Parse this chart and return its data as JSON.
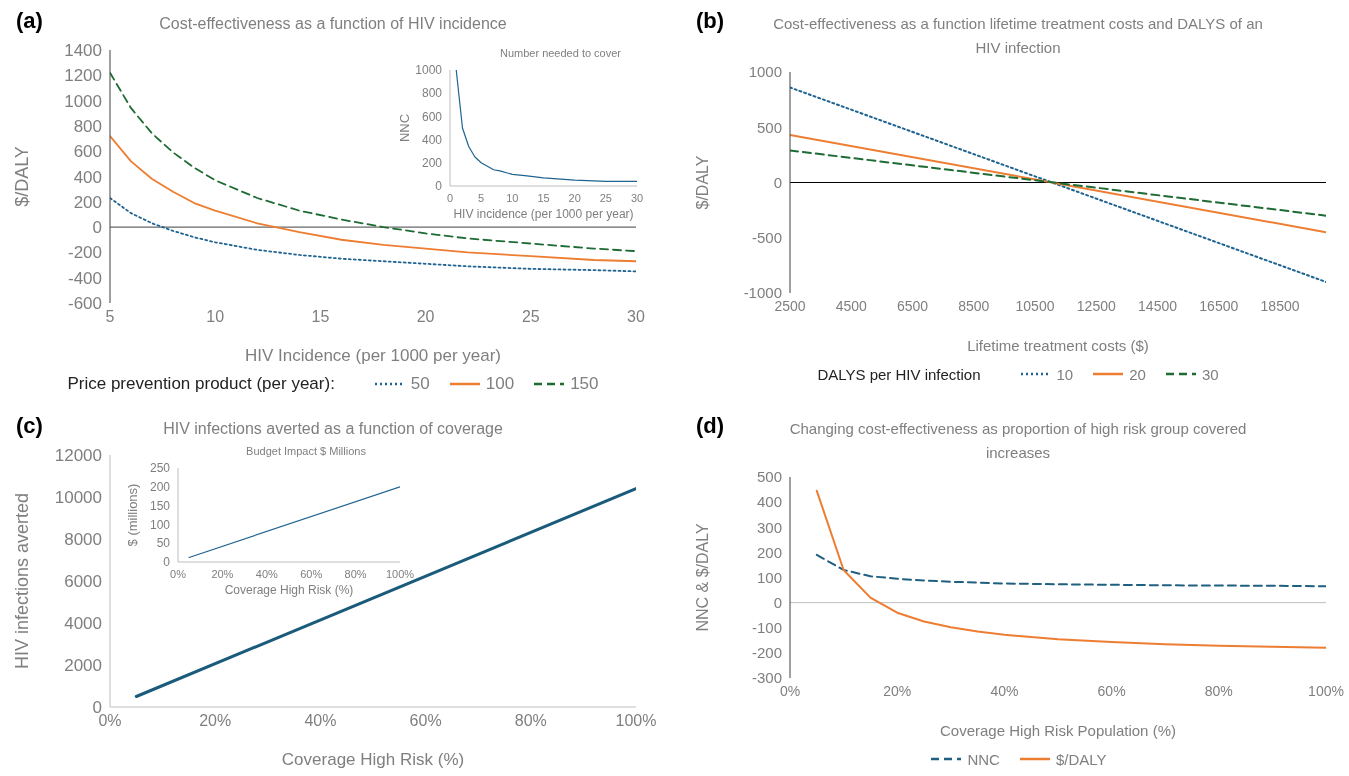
{
  "chart_data": [
    {
      "type": "line",
      "title": "Cost-effectiveness as a function of HIV incidence",
      "xlabel": "HIV Incidence (per 1000 per year)",
      "ylabel": "$/DALY",
      "legend_title": "Price prevention product (per year):",
      "annotations": [
        "(a)"
      ],
      "x": [
        5,
        6,
        7,
        8,
        9,
        10,
        12,
        14,
        16,
        18,
        20,
        22,
        25,
        28,
        30
      ],
      "xlim": [
        5,
        30
      ],
      "xticks": [
        5,
        10,
        15,
        20,
        25,
        30
      ],
      "ylim": [
        -600,
        1400
      ],
      "yticks": [
        -600,
        -400,
        -200,
        0,
        200,
        400,
        600,
        800,
        1000,
        1200,
        1400
      ],
      "legend": "bottom",
      "marker": "none",
      "ref_lines": [
        {
          "axis": "y",
          "value": 0,
          "color": "#404040"
        }
      ],
      "series": [
        {
          "name": "50",
          "color": "#1f6391",
          "line_style": "dotted",
          "values": [
            230,
            110,
            30,
            -30,
            -80,
            -120,
            -180,
            -220,
            -250,
            -270,
            -290,
            -310,
            -330,
            -340,
            -350
          ]
        },
        {
          "name": "100",
          "color": "#ed7d31",
          "line_style": "solid",
          "values": [
            720,
            520,
            380,
            280,
            190,
            130,
            30,
            -40,
            -100,
            -140,
            -170,
            -200,
            -230,
            -260,
            -270
          ]
        },
        {
          "name": "150",
          "color": "#1e6b34",
          "line_style": "dashed",
          "values": [
            1220,
            940,
            740,
            590,
            470,
            370,
            230,
            130,
            60,
            0,
            -50,
            -90,
            -130,
            -170,
            -190
          ]
        }
      ]
    },
    {
      "type": "line",
      "title": "Number needed to cover",
      "xlabel": "HIV incidence (per 1000 per year)",
      "ylabel": "NNC",
      "x": [
        1,
        2,
        3,
        4,
        5,
        6,
        7,
        8,
        10,
        12,
        15,
        20,
        25,
        30
      ],
      "xlim": [
        0,
        30
      ],
      "xticks": [
        0,
        5,
        10,
        15,
        20,
        25,
        30
      ],
      "ylim": [
        0,
        1000
      ],
      "yticks": [
        0,
        200,
        400,
        600,
        800,
        1000
      ],
      "marker": "none",
      "series": [
        {
          "color": "#1f6391",
          "line_style": "solid",
          "values": [
            1000,
            500,
            340,
            250,
            200,
            170,
            140,
            130,
            100,
            90,
            70,
            50,
            40,
            40
          ]
        }
      ]
    },
    {
      "type": "line",
      "title": "Cost-effectiveness as a function lifetime treatment costs and DALYS of an HIV infection",
      "xlabel": "Lifetime treatment costs ($)",
      "ylabel": "$/DALY",
      "legend_title": "DALYS per HIV infection",
      "annotations": [
        "(b)"
      ],
      "x": [
        2500,
        20000
      ],
      "xlim": [
        2500,
        20000
      ],
      "xticks": [
        2500,
        4500,
        6500,
        8500,
        10500,
        12500,
        14500,
        16500,
        18500
      ],
      "ylim": [
        -1000,
        1000
      ],
      "yticks": [
        -1000,
        -500,
        0,
        500,
        1000
      ],
      "legend": "bottom",
      "marker": "none",
      "ref_lines": [
        {
          "axis": "y",
          "value": 0,
          "color": "#000000"
        }
      ],
      "series": [
        {
          "name": "10",
          "color": "#1f6391",
          "line_style": "dotted",
          "values": [
            860,
            -900
          ]
        },
        {
          "name": "20",
          "color": "#ed7d31",
          "line_style": "solid",
          "values": [
            430,
            -450
          ]
        },
        {
          "name": "30",
          "color": "#1e6b34",
          "line_style": "dashed",
          "values": [
            290,
            -300
          ]
        }
      ]
    },
    {
      "type": "line",
      "title": "HIV infections averted as a function of coverage",
      "xlabel": "Coverage High Risk (%)",
      "ylabel": "HIV infections averted",
      "annotations": [
        "(c)"
      ],
      "x": [
        5,
        100
      ],
      "xlim": [
        0,
        100
      ],
      "xticks": [
        {
          "value": 0,
          "label": "0%"
        },
        {
          "value": 20,
          "label": "20%"
        },
        {
          "value": 40,
          "label": "40%"
        },
        {
          "value": 60,
          "label": "60%"
        },
        {
          "value": 80,
          "label": "80%"
        },
        {
          "value": 100,
          "label": "100%"
        }
      ],
      "ylim": [
        0,
        12000
      ],
      "yticks": [
        0,
        2000,
        4000,
        6000,
        8000,
        10000,
        12000
      ],
      "marker": "none",
      "series": [
        {
          "color": "#1a5a7a",
          "line_style": "solid",
          "values": [
            500,
            10400
          ]
        }
      ]
    },
    {
      "type": "line",
      "title": "Budget Impact $ Millions",
      "xlabel": "Coverage High Risk (%)",
      "ylabel": "$ (millions)",
      "x": [
        5,
        100
      ],
      "xlim": [
        0,
        100
      ],
      "xticks": [
        {
          "value": 0,
          "label": "0%"
        },
        {
          "value": 20,
          "label": "20%"
        },
        {
          "value": 40,
          "label": "40%"
        },
        {
          "value": 60,
          "label": "60%"
        },
        {
          "value": 80,
          "label": "80%"
        },
        {
          "value": 100,
          "label": "100%"
        }
      ],
      "ylim": [
        0,
        250
      ],
      "yticks": [
        0,
        50,
        100,
        150,
        200,
        250
      ],
      "marker": "none",
      "series": [
        {
          "color": "#1f6391",
          "line_style": "solid",
          "values": [
            12,
            200
          ]
        }
      ]
    },
    {
      "type": "line",
      "title": "Changing cost-effectiveness as proportion of high risk group covered increases",
      "xlabel": "Coverage High Risk Population (%)",
      "ylabel": "NNC & $/DALY",
      "annotations": [
        "(d)"
      ],
      "x": [
        5,
        10,
        15,
        20,
        25,
        30,
        35,
        40,
        50,
        60,
        70,
        80,
        90,
        100
      ],
      "xlim": [
        0,
        100
      ],
      "xticks": [
        {
          "value": 0,
          "label": "0%"
        },
        {
          "value": 20,
          "label": "20%"
        },
        {
          "value": 40,
          "label": "40%"
        },
        {
          "value": 60,
          "label": "60%"
        },
        {
          "value": 80,
          "label": "80%"
        },
        {
          "value": 100,
          "label": "100%"
        }
      ],
      "ylim": [
        -300,
        500
      ],
      "yticks": [
        -300,
        -200,
        -100,
        0,
        100,
        200,
        300,
        400,
        500
      ],
      "legend": "bottom",
      "marker": "none",
      "ref_lines": [
        {
          "axis": "y",
          "value": 0,
          "color": "#bfbfbf"
        }
      ],
      "series": [
        {
          "name": "NNC",
          "color": "#1f5f80",
          "line_style": "dashed",
          "values": [
            190,
            130,
            105,
            95,
            88,
            83,
            80,
            76,
            73,
            71,
            69,
            68,
            67,
            65
          ]
        },
        {
          "name": "$/DALY",
          "color": "#ed7d31",
          "line_style": "solid",
          "values": [
            445,
            130,
            20,
            -40,
            -75,
            -98,
            -115,
            -128,
            -146,
            -157,
            -166,
            -172,
            -176,
            -180
          ]
        }
      ]
    }
  ]
}
